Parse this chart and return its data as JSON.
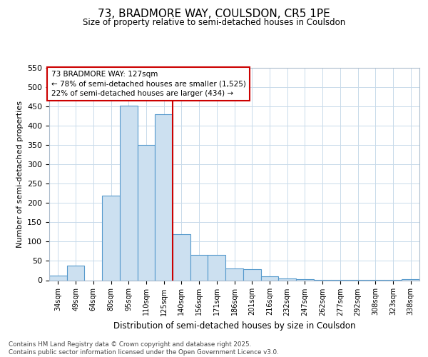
{
  "title1": "73, BRADMORE WAY, COULSDON, CR5 1PE",
  "title2": "Size of property relative to semi-detached houses in Coulsdon",
  "xlabel": "Distribution of semi-detached houses by size in Coulsdon",
  "ylabel": "Number of semi-detached properties",
  "bins": [
    "34sqm",
    "49sqm",
    "64sqm",
    "80sqm",
    "95sqm",
    "110sqm",
    "125sqm",
    "140sqm",
    "156sqm",
    "171sqm",
    "186sqm",
    "201sqm",
    "216sqm",
    "232sqm",
    "247sqm",
    "262sqm",
    "277sqm",
    "292sqm",
    "308sqm",
    "323sqm",
    "338sqm"
  ],
  "bar_heights": [
    12,
    38,
    0,
    220,
    452,
    350,
    430,
    120,
    65,
    65,
    30,
    28,
    10,
    5,
    2,
    1,
    1,
    1,
    1,
    1,
    3
  ],
  "bar_color": "#cce0f0",
  "bar_edge_color": "#5599cc",
  "vline_color": "#cc0000",
  "annotation_text": "73 BRADMORE WAY: 127sqm\n← 78% of semi-detached houses are smaller (1,525)\n22% of semi-detached houses are larger (434) →",
  "annotation_box_color": "#cc0000",
  "ylim": [
    0,
    550
  ],
  "yticks": [
    0,
    50,
    100,
    150,
    200,
    250,
    300,
    350,
    400,
    450,
    500,
    550
  ],
  "footer": "Contains HM Land Registry data © Crown copyright and database right 2025.\nContains public sector information licensed under the Open Government Licence v3.0.",
  "grid_color": "#c8daea",
  "vline_bin_index": 6
}
